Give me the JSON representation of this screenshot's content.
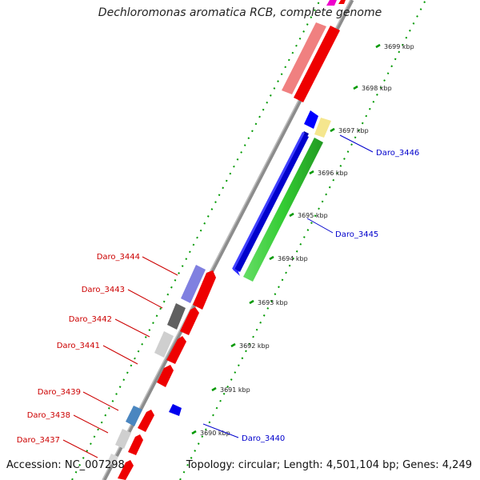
{
  "title": "Dechloromonas aromatica RCB, complete genome",
  "footer": {
    "accession_label": "Accession:",
    "accession": "NC_007298",
    "topology_label": "Topology:",
    "topology": "circular",
    "length_label": "Length:",
    "length": "4,501,104 bp",
    "genes_label": "Genes:",
    "genes": "4,249"
  },
  "colors": {
    "forward_gene": "#ff0000",
    "reverse_gene": "#0000ff",
    "backbone": "#8c8c8c",
    "tick": "#009900",
    "label_forward": "#cc0000",
    "label_reverse": "#0000cc"
  },
  "scale_ticks": [
    "3690 kbp",
    "3691 kbp",
    "3692 kbp",
    "3693 kbp",
    "3694 kbp",
    "3695 kbp",
    "3696 kbp",
    "3697 kbp",
    "3698 kbp",
    "3699 kbp"
  ],
  "gene_labels": [
    {
      "name": "Daro_3446",
      "strand": "reverse"
    },
    {
      "name": "Daro_3445",
      "strand": "reverse"
    },
    {
      "name": "Daro_3444",
      "strand": "forward"
    },
    {
      "name": "Daro_3443",
      "strand": "forward"
    },
    {
      "name": "Daro_3442",
      "strand": "forward"
    },
    {
      "name": "Daro_3441",
      "strand": "forward"
    },
    {
      "name": "Daro_3440",
      "strand": "reverse"
    },
    {
      "name": "Daro_3439",
      "strand": "forward"
    },
    {
      "name": "Daro_3438",
      "strand": "forward"
    },
    {
      "name": "Daro_3437",
      "strand": "forward"
    }
  ]
}
